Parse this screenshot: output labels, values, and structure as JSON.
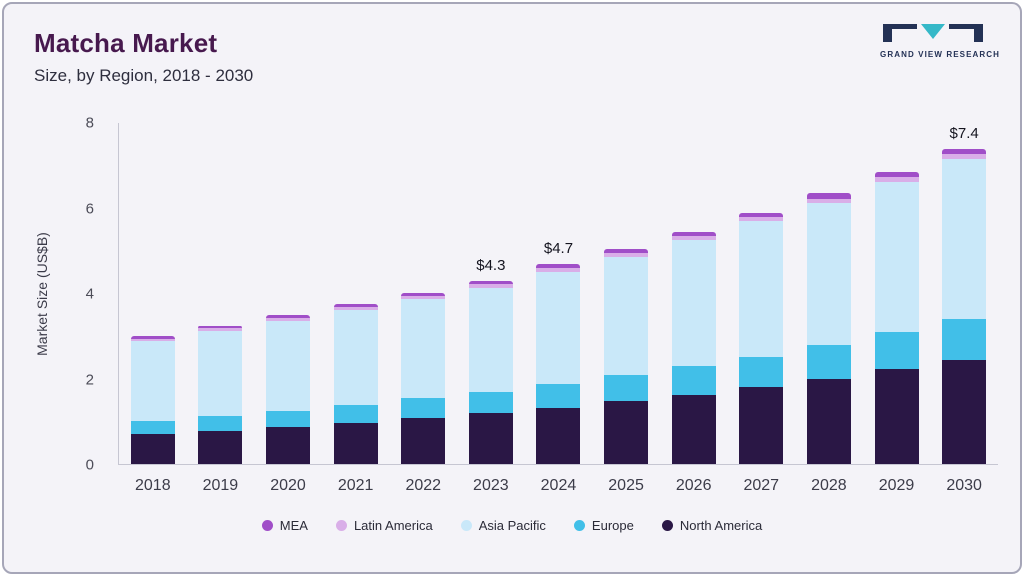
{
  "header": {
    "title": "Matcha Market",
    "subtitle": "Size, by Region, 2018 - 2030"
  },
  "logo": {
    "text": "GRAND VIEW RESEARCH"
  },
  "chart_data": {
    "type": "bar",
    "stacked": true,
    "title": "Matcha Market Size, by Region, 2018 - 2030",
    "ylabel": "Market Size (US$B)",
    "xlabel": "",
    "ylim": [
      0,
      8
    ],
    "yticks": [
      0,
      2,
      4,
      6,
      8
    ],
    "grid": false,
    "legend_position": "bottom",
    "categories": [
      "2018",
      "2019",
      "2020",
      "2021",
      "2022",
      "2023",
      "2024",
      "2025",
      "2026",
      "2027",
      "2028",
      "2029",
      "2030"
    ],
    "series_order": "bottom-to-top",
    "series": [
      {
        "name": "North America",
        "color": "#2a1745",
        "values": [
          0.7,
          0.78,
          0.87,
          0.97,
          1.08,
          1.2,
          1.32,
          1.47,
          1.62,
          1.8,
          2.0,
          2.22,
          2.45
        ]
      },
      {
        "name": "Europe",
        "color": "#41bfe8",
        "values": [
          0.3,
          0.34,
          0.38,
          0.42,
          0.46,
          0.5,
          0.55,
          0.62,
          0.68,
          0.72,
          0.8,
          0.88,
          0.95
        ]
      },
      {
        "name": "Asia Pacific",
        "color": "#c9e8f9",
        "values": [
          1.88,
          2.0,
          2.11,
          2.22,
          2.33,
          2.44,
          2.64,
          2.77,
          2.95,
          3.17,
          3.33,
          3.52,
          3.75
        ]
      },
      {
        "name": "Latin America",
        "color": "#d9aee8",
        "values": [
          0.06,
          0.06,
          0.07,
          0.07,
          0.07,
          0.08,
          0.09,
          0.09,
          0.1,
          0.1,
          0.1,
          0.11,
          0.12
        ]
      },
      {
        "name": "MEA",
        "color": "#a04ec8",
        "values": [
          0.06,
          0.07,
          0.07,
          0.08,
          0.08,
          0.08,
          0.1,
          0.1,
          0.1,
          0.11,
          0.12,
          0.12,
          0.13
        ]
      }
    ],
    "totals": [
      3.0,
      3.25,
      3.5,
      3.76,
      4.02,
      4.3,
      4.7,
      5.05,
      5.45,
      5.9,
      6.35,
      6.85,
      7.4
    ],
    "bar_labels": [
      "",
      "",
      "",
      "",
      "",
      "$4.3",
      "$4.7",
      "",
      "",
      "",
      "",
      "",
      "$7.4"
    ]
  },
  "legend": {
    "items": [
      {
        "label": "MEA",
        "color": "#a04ec8"
      },
      {
        "label": "Latin America",
        "color": "#d9aee8"
      },
      {
        "label": "Asia Pacific",
        "color": "#c9e8f9"
      },
      {
        "label": "Europe",
        "color": "#41bfe8"
      },
      {
        "label": "North America",
        "color": "#2a1745"
      }
    ]
  },
  "colors": {
    "background": "#f4f3f8",
    "frame_border": "#a6a6b8",
    "title": "#47194e",
    "axis_line": "#c6c6d2",
    "logo_navy": "#233155",
    "logo_teal": "#35b8c8"
  }
}
